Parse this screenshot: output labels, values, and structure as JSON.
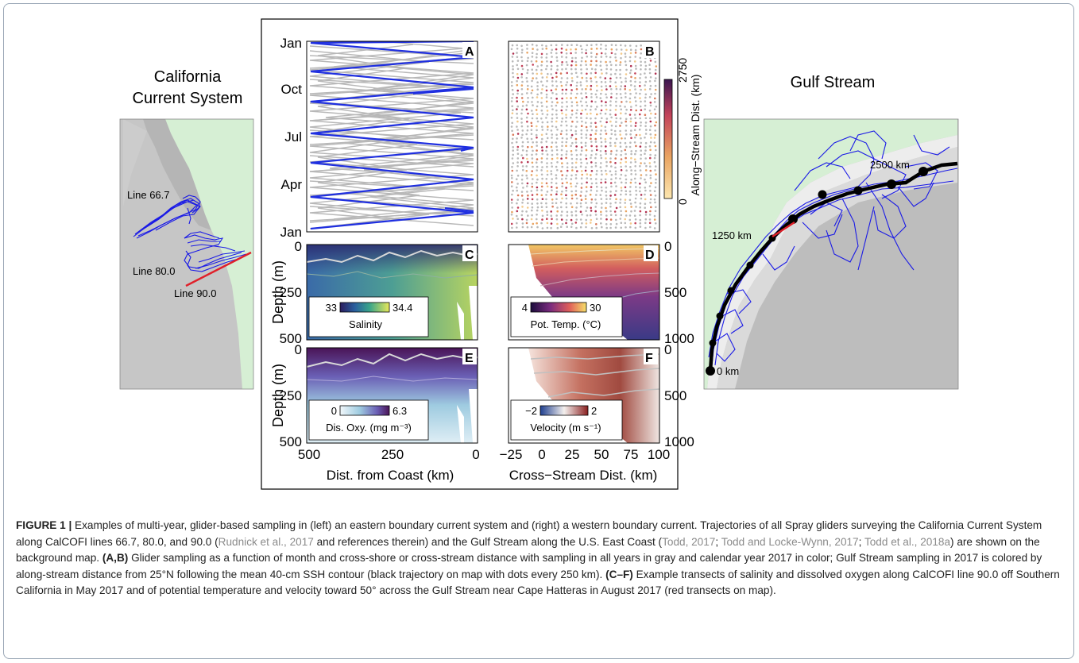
{
  "figure": {
    "left_title_line1": "California",
    "left_title_line2": "Current System",
    "right_title": "Gulf Stream",
    "left_map_labels": [
      "Line 66.7",
      "Line 80.0",
      "Line 90.0"
    ],
    "right_map_labels": [
      "2500 km",
      "1250 km",
      "0 km"
    ],
    "panelA": {
      "letter": "A",
      "yticks": [
        "Jan",
        "Apr",
        "Jul",
        "Oct",
        "Jan"
      ]
    },
    "panelB": {
      "letter": "B",
      "colorbar_label": "Along−Stream Dist. (km)",
      "colorbar_min": "0",
      "colorbar_max": "2750"
    },
    "panelC": {
      "letter": "C",
      "cb_min": "33",
      "cb_max": "34.4",
      "cb_label": "Salinity"
    },
    "panelD": {
      "letter": "D",
      "cb_min": "4",
      "cb_max": "30",
      "cb_label": "Pot. Temp. (°C)"
    },
    "panelE": {
      "letter": "E",
      "cb_min": "0",
      "cb_max": "6.3",
      "cb_label": "Dis. Oxy. (mg m⁻³)"
    },
    "panelF": {
      "letter": "F",
      "cb_min": "−2",
      "cb_max": "2",
      "cb_label": "Velocity (m s⁻¹)"
    },
    "depth_label": "Depth (m)",
    "left_depth_ticks": [
      "0",
      "250",
      "500"
    ],
    "right_depth_ticks": [
      "0",
      "500",
      "1000"
    ],
    "x_left_ticks": [
      "500",
      "250",
      "0"
    ],
    "x_right_ticks": [
      "−25",
      "0",
      "25",
      "50",
      "75",
      "100"
    ],
    "x_left_label": "Dist. from Coast (km)",
    "x_right_label": "Cross−Stream Dist. (km)",
    "colors": {
      "trajectory": "#1a1ae6",
      "transect": "#e0202a",
      "land": "#d4efd4",
      "ocean": "#c8c8c8",
      "mean_path": "#000000",
      "frame": "#9aa7b6"
    }
  },
  "caption": {
    "label": "FIGURE 1 |",
    "t1": " Examples of multi-year, glider-based sampling in (left) an eastern boundary current system and (right) a western boundary current. Trajectories of all Spray gliders surveying the California Current System along CalCOFI lines 66.7, 80.0, and 90.0 (",
    "r1": "Rudnick et al., 2017",
    "t2": " and references therein) and the Gulf Stream along the U.S. East Coast (",
    "r2": "Todd, 2017",
    "t3": "; ",
    "r3": "Todd and Locke-Wynn, 2017",
    "t4": "; ",
    "r4": "Todd et al., 2018a",
    "t5": ") are shown on the background map. ",
    "b1": "(A,B)",
    "t6": " Glider sampling as a function of month and cross-shore or cross-stream distance with sampling in all years in gray and calendar year 2017 in color; Gulf Stream sampling in 2017 is colored by along-stream distance from 25°N following the mean 40-cm SSH contour (black trajectory on map with dots every 250 km). ",
    "b2": "(C–F)",
    "t7": " Example transects of salinity and dissolved oxygen along CalCOFI line 90.0 off Southern California in May 2017 and of potential temperature and velocity toward 50° across the Gulf Stream near Cape Hatteras in August 2017 (red transects on map)."
  }
}
